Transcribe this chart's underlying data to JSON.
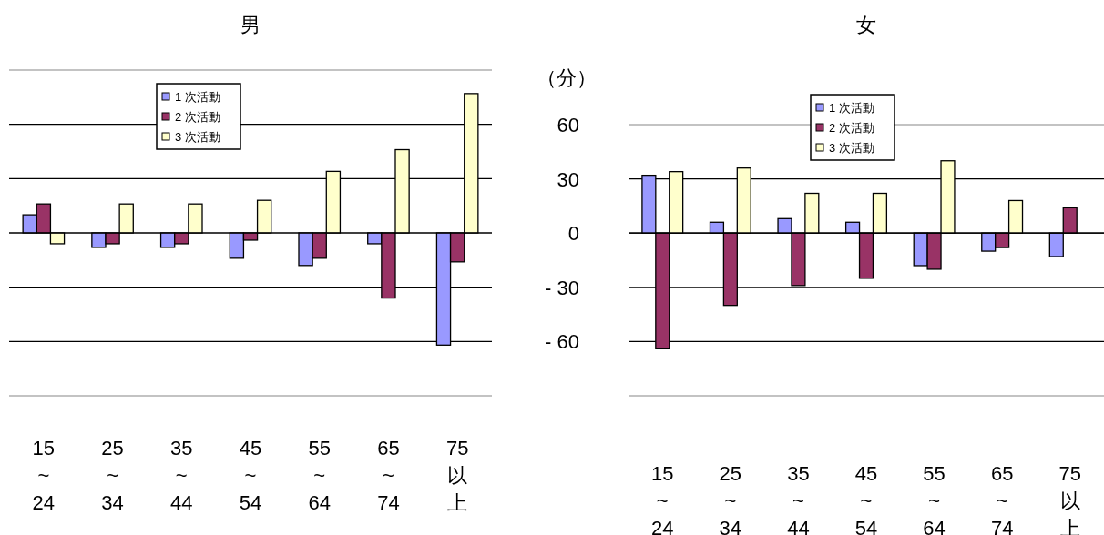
{
  "chart_data": [
    {
      "type": "bar",
      "title": "男",
      "categories": [
        "15\n~\n24",
        "25\n~\n34",
        "35\n~\n44",
        "45\n~\n54",
        "55\n~\n64",
        "65\n~\n74",
        "75\n以上"
      ],
      "series": [
        {
          "name": "1 次活動",
          "color": "#9999ff",
          "values": [
            10,
            -8,
            -8,
            -14,
            -18,
            -6,
            -62
          ]
        },
        {
          "name": "2 次活動",
          "color": "#993366",
          "values": [
            16,
            -6,
            -6,
            -4,
            -14,
            -36,
            -16
          ]
        },
        {
          "name": "3 次活動",
          "color": "#ffffcc",
          "values": [
            -6,
            16,
            16,
            18,
            34,
            46,
            77
          ]
        }
      ],
      "ylim": [
        -90,
        90
      ],
      "yticks": [
        -90,
        -60,
        -30,
        0,
        30,
        60,
        90
      ],
      "grid": "y",
      "legend": "top",
      "tick_labels": "x"
    },
    {
      "type": "bar",
      "title": "女",
      "ylabel": "（分）",
      "categories": [
        "15\n~\n24",
        "25\n~\n34",
        "35\n~\n44",
        "45\n~\n54",
        "55\n~\n64",
        "65\n~\n74",
        "75\n以上"
      ],
      "series": [
        {
          "name": "1 次活動",
          "color": "#9999ff",
          "values": [
            32,
            6,
            8,
            6,
            -18,
            -10,
            -13
          ]
        },
        {
          "name": "2 次活動",
          "color": "#993366",
          "values": [
            -64,
            -40,
            -29,
            -25,
            -20,
            -8,
            14
          ]
        },
        {
          "name": "3 次活動",
          "color": "#ffffcc",
          "values": [
            34,
            36,
            22,
            22,
            40,
            18,
            null
          ]
        }
      ],
      "ylim": [
        -90,
        60
      ],
      "yticks": [
        {
          "value": -90,
          "label": null
        },
        {
          "value": -60,
          "label": "- 60"
        },
        {
          "value": -30,
          "label": "- 30"
        },
        0,
        30,
        60
      ],
      "grid": "y",
      "legend": "top"
    }
  ]
}
